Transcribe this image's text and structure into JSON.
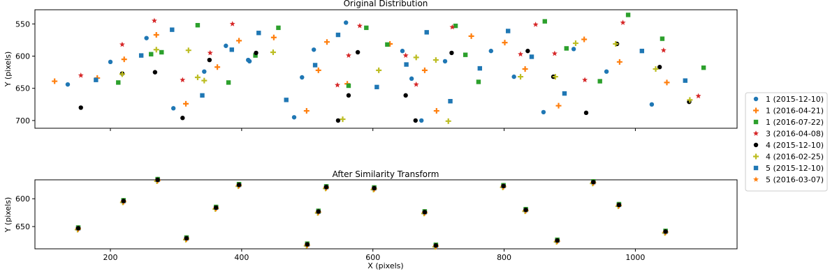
{
  "chart_data": [
    {
      "type": "scatter",
      "title": "Original Distribution",
      "xlabel": "",
      "ylabel": "Y (pixels)",
      "xlim": [
        85,
        1155
      ],
      "ylim": [
        712,
        528
      ],
      "y_inverted": true,
      "xticks": [
        200,
        400,
        600,
        800,
        1000
      ],
      "xtick_labels": [
        "",
        "",
        "",
        "",
        ""
      ],
      "yticks": [
        550,
        600,
        650,
        700
      ],
      "ytick_labels": [
        "550",
        "600",
        "650",
        "700"
      ],
      "series": [
        {
          "name": "1 (2015-12-10)",
          "marker": "circle",
          "color": "#1f77b4",
          "points": [
            [
              135,
              644
            ],
            [
              200,
              609
            ],
            [
              255,
              572
            ],
            [
              296,
              681
            ],
            [
              343,
              624
            ],
            [
              376,
              584
            ],
            [
              410,
              606
            ],
            [
              412,
              608
            ],
            [
              480,
              695
            ],
            [
              492,
              633
            ],
            [
              510,
              590
            ],
            [
              559,
              548
            ],
            [
              645,
              592
            ],
            [
              659,
              635
            ],
            [
              674,
              700
            ],
            [
              710,
              608
            ],
            [
              780,
              592
            ],
            [
              815,
              632
            ],
            [
              860,
              687
            ],
            [
              906,
              589
            ],
            [
              956,
              624
            ],
            [
              1025,
              675
            ]
          ]
        },
        {
          "name": "1 (2016-04-21)",
          "marker": "plus",
          "color": "#ff7f0e",
          "points": [
            [
              115,
              639
            ],
            [
              180,
              634
            ],
            [
              221,
              605
            ],
            [
              270,
              567
            ],
            [
              315,
              674
            ],
            [
              363,
              617
            ],
            [
              396,
              576
            ],
            [
              449,
              571
            ],
            [
              499,
              685
            ],
            [
              517,
              622
            ],
            [
              530,
              578
            ],
            [
              561,
              643
            ],
            [
              626,
              581
            ],
            [
              679,
              622
            ],
            [
              697,
              685
            ],
            [
              750,
              569
            ],
            [
              801,
              579
            ],
            [
              832,
              620
            ],
            [
              883,
              677
            ],
            [
              922,
              574
            ],
            [
              976,
              609
            ],
            [
              1048,
              641
            ]
          ]
        },
        {
          "name": "1 (2016-07-22)",
          "marker": "square",
          "color": "#2ca02c",
          "points": [
            [
              212,
              641
            ],
            [
              262,
              597
            ],
            [
              278,
              594
            ],
            [
              333,
              552
            ],
            [
              380,
              641
            ],
            [
              421,
              599
            ],
            [
              456,
              556
            ],
            [
              563,
              646
            ],
            [
              590,
              556
            ],
            [
              622,
              582
            ],
            [
              726,
              553
            ],
            [
              741,
              598
            ],
            [
              761,
              640
            ],
            [
              862,
              546
            ],
            [
              895,
              588
            ],
            [
              946,
              639
            ],
            [
              989,
              536
            ],
            [
              1041,
              573
            ],
            [
              1104,
              618
            ]
          ]
        },
        {
          "name": "3 (2016-04-08)",
          "marker": "star",
          "color": "#d62728",
          "points": [
            [
              155,
              630
            ],
            [
              218,
              582
            ],
            [
              267,
              545
            ],
            [
              310,
              637
            ],
            [
              352,
              595
            ],
            [
              386,
              550
            ],
            [
              546,
              645
            ],
            [
              563,
              599
            ],
            [
              580,
              553
            ],
            [
              650,
              599
            ],
            [
              666,
              644
            ],
            [
              721,
              555
            ],
            [
              825,
              597
            ],
            [
              848,
              551
            ],
            [
              877,
              596
            ],
            [
              923,
              637
            ],
            [
              981,
              548
            ],
            [
              1043,
              591
            ],
            [
              1096,
              662
            ]
          ]
        },
        {
          "name": "4 (2015-12-10)",
          "marker": "circle-black",
          "color": "#000000",
          "points": [
            [
              155,
              680
            ],
            [
              218,
              627
            ],
            [
              268,
              625
            ],
            [
              310,
              696
            ],
            [
              351,
              606
            ],
            [
              422,
              595
            ],
            [
              547,
              700
            ],
            [
              563,
              661
            ],
            [
              577,
              594
            ],
            [
              650,
              661
            ],
            [
              665,
              700
            ],
            [
              720,
              595
            ],
            [
              836,
              592
            ],
            [
              875,
              632
            ],
            [
              925,
              688
            ],
            [
              972,
              581
            ],
            [
              1037,
              617
            ],
            [
              1082,
              671
            ]
          ]
        },
        {
          "name": "4 (2016-02-25)",
          "marker": "plus",
          "color": "#bcbd22",
          "points": [
            [
              218,
              628
            ],
            [
              270,
              590
            ],
            [
              319,
              591
            ],
            [
              333,
              633
            ],
            [
              343,
              638
            ],
            [
              448,
              594
            ],
            [
              554,
              698
            ],
            [
              609,
              622
            ],
            [
              666,
              602
            ],
            [
              696,
              606
            ],
            [
              715,
              701
            ],
            [
              825,
              632
            ],
            [
              878,
              632
            ],
            [
              909,
              580
            ],
            [
              970,
              581
            ],
            [
              1031,
              620
            ],
            [
              1083,
              668
            ]
          ]
        },
        {
          "name": "5 (2015-12-10)",
          "marker": "square",
          "color": "#1f77b4",
          "points": [
            [
              178,
              637
            ],
            [
              247,
              599
            ],
            [
              294,
              559
            ],
            [
              340,
              661
            ],
            [
              385,
              590
            ],
            [
              426,
              564
            ],
            [
              468,
              668
            ],
            [
              512,
              614
            ],
            [
              547,
              567
            ],
            [
              606,
              648
            ],
            [
              651,
              613
            ],
            [
              682,
              563
            ],
            [
              718,
              670
            ],
            [
              763,
              619
            ],
            [
              806,
              561
            ],
            [
              842,
              601
            ],
            [
              892,
              658
            ],
            [
              1010,
              592
            ],
            [
              1076,
              638
            ]
          ]
        },
        {
          "name": "5 (2016-03-07)",
          "marker": "star",
          "color": "#ff7f0e",
          "points": []
        }
      ]
    },
    {
      "type": "scatter",
      "title": "After Similarity Transform",
      "xlabel": "X (pixels)",
      "ylabel": "Y (pixels)",
      "xlim": [
        85,
        1155
      ],
      "ylim": [
        690,
        566
      ],
      "y_inverted": true,
      "xticks": [
        200,
        400,
        600,
        800,
        1000
      ],
      "xtick_labels": [
        "200",
        "400",
        "600",
        "800",
        "1000"
      ],
      "yticks": [
        600,
        650
      ],
      "ytick_labels": [
        "600",
        "650"
      ],
      "points": [
        [
          151,
          653
        ],
        [
          220,
          604
        ],
        [
          272,
          566
        ],
        [
          316,
          671
        ],
        [
          361,
          616
        ],
        [
          396,
          575
        ],
        [
          500,
          682
        ],
        [
          517,
          623
        ],
        [
          529,
          579
        ],
        [
          602,
          581
        ],
        [
          696,
          684
        ],
        [
          679,
          624
        ],
        [
          799,
          577
        ],
        [
          833,
          620
        ],
        [
          881,
          675
        ],
        [
          936,
          570
        ],
        [
          975,
          611
        ],
        [
          1046,
          659
        ]
      ]
    }
  ],
  "legend": {
    "position": "right",
    "entries": [
      {
        "label": "1 (2015-12-10)",
        "marker": "circle",
        "color": "#1f77b4"
      },
      {
        "label": "1 (2016-04-21)",
        "marker": "plus",
        "color": "#ff7f0e"
      },
      {
        "label": "1 (2016-07-22)",
        "marker": "square",
        "color": "#2ca02c"
      },
      {
        "label": "3 (2016-04-08)",
        "marker": "star",
        "color": "#d62728"
      },
      {
        "label": "4 (2015-12-10)",
        "marker": "circle-black",
        "color": "#000000"
      },
      {
        "label": "4 (2016-02-25)",
        "marker": "plus",
        "color": "#bcbd22"
      },
      {
        "label": "5 (2015-12-10)",
        "marker": "square",
        "color": "#1f77b4"
      },
      {
        "label": "5 (2016-03-07)",
        "marker": "star",
        "color": "#ff7f0e"
      }
    ]
  }
}
